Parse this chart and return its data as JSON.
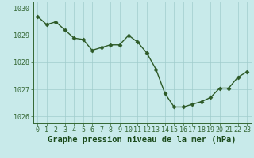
{
  "x": [
    0,
    1,
    2,
    3,
    4,
    5,
    6,
    7,
    8,
    9,
    10,
    11,
    12,
    13,
    14,
    15,
    16,
    17,
    18,
    19,
    20,
    21,
    22,
    23
  ],
  "y": [
    1029.7,
    1029.4,
    1029.5,
    1029.2,
    1028.9,
    1028.85,
    1028.45,
    1028.55,
    1028.65,
    1028.65,
    1029.0,
    1028.75,
    1028.35,
    1027.75,
    1026.85,
    1026.35,
    1026.35,
    1026.45,
    1026.55,
    1026.7,
    1027.05,
    1027.05,
    1027.45,
    1027.65
  ],
  "line_color": "#2d5a27",
  "marker": "D",
  "marker_size": 2.5,
  "bg_color": "#c8eaea",
  "plot_bg_color": "#c8eaea",
  "grid_color": "#a0cccc",
  "xlabel": "Graphe pression niveau de la mer (hPa)",
  "xlabel_fontsize": 7.5,
  "xlabel_color": "#1a4a1a",
  "xlim": [
    -0.5,
    23.5
  ],
  "ylim": [
    1025.75,
    1030.25
  ],
  "yticks": [
    1026,
    1027,
    1028,
    1029,
    1030
  ],
  "xticks": [
    0,
    1,
    2,
    3,
    4,
    5,
    6,
    7,
    8,
    9,
    10,
    11,
    12,
    13,
    14,
    15,
    16,
    17,
    18,
    19,
    20,
    21,
    22,
    23
  ],
  "tick_fontsize": 6,
  "axis_color": "#336633",
  "line_width": 1.0
}
